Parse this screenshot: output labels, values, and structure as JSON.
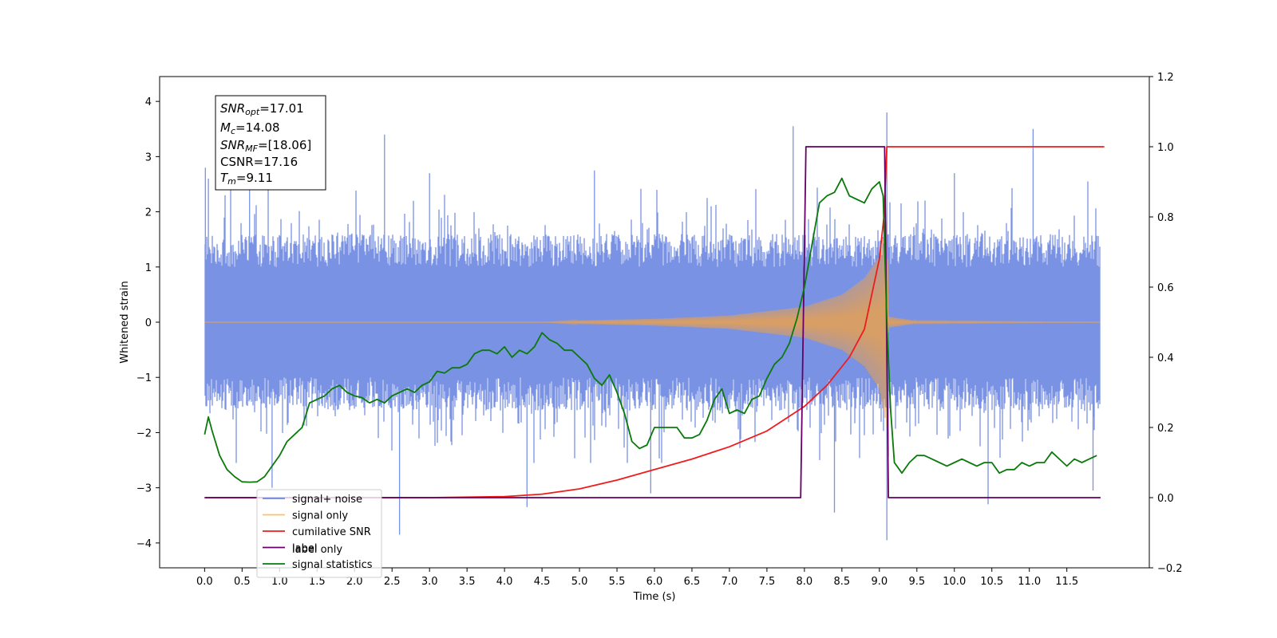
{
  "chart_data": {
    "type": "line",
    "xlabel": "Time (s)",
    "ylabel": "Whitened strain",
    "xlim": [
      -0.6,
      12.6
    ],
    "ylim": [
      -4.45,
      4.45
    ],
    "y2lim": [
      -0.2,
      1.2
    ],
    "x_ticks": [
      "0.0",
      "0.5",
      "1.0",
      "1.5",
      "2.0",
      "2.5",
      "3.0",
      "3.5",
      "4.0",
      "4.5",
      "5.0",
      "5.5",
      "6.0",
      "6.5",
      "7.0",
      "7.5",
      "8.0",
      "8.5",
      "9.0",
      "9.5",
      "10.0",
      "10.5",
      "11.0",
      "11.5"
    ],
    "y_ticks": [
      "4",
      "3",
      "2",
      "1",
      "0",
      "−1",
      "−2",
      "−3",
      "−4"
    ],
    "y2_ticks": [
      "1.2",
      "1.0",
      "0.8",
      "0.6",
      "0.4",
      "0.2",
      "0.0",
      "−0.2"
    ],
    "grid": false,
    "legend_position": "lower-left",
    "textbox": {
      "snr_opt_value": "=17.01",
      "mc_value": "=14.08",
      "snr_mf_value": "=[18.06]",
      "csnr": "CSNR=17.16",
      "tm_value": "=9.11",
      "snr_label": "SNR",
      "opt_sub": "opt",
      "mc_label": "M",
      "mc_sub": "c",
      "mf_sub": "MF",
      "tm_label": "T",
      "tm_sub": "m"
    },
    "legend": [
      {
        "label": "signal+ noise",
        "color": "#6b86e0"
      },
      {
        "label": "signal only",
        "color": "#ffc060"
      },
      {
        "label": "cumilative SNR",
        "color": "#ee1c1c"
      },
      {
        "label": "label",
        "color": "#660066"
      },
      {
        "label": "signal statistics",
        "color": "#0a7a0a"
      }
    ],
    "hidden_legend_text": "label only",
    "series": [
      {
        "name": "signal+ noise",
        "axis": "left",
        "color": "#6b86e0",
        "spikes": [
          [
            0.01,
            2.8
          ],
          [
            0.6,
            3.05
          ],
          [
            2.4,
            3.4
          ],
          [
            7.85,
            3.55
          ],
          [
            9.1,
            3.8
          ],
          [
            11.05,
            3.5
          ],
          [
            2.6,
            -3.85
          ],
          [
            4.3,
            -3.35
          ],
          [
            8.4,
            -3.45
          ],
          [
            9.1,
            -3.95
          ],
          [
            10.45,
            -3.3
          ],
          [
            11.85,
            -3.05
          ],
          [
            0.9,
            -3.0
          ],
          [
            5.95,
            -3.1
          ],
          [
            0.05,
            2.6
          ],
          [
            3.0,
            2.7
          ],
          [
            5.2,
            2.75
          ],
          [
            10.0,
            2.7
          ]
        ]
      },
      {
        "name": "signal only",
        "axis": "left",
        "color": "#e8a050",
        "points": [
          [
            4.5,
            0.0
          ],
          [
            5.0,
            0.03
          ],
          [
            6.0,
            0.06
          ],
          [
            7.0,
            0.12
          ],
          [
            7.5,
            0.2
          ],
          [
            8.0,
            0.28
          ],
          [
            8.5,
            0.5
          ],
          [
            8.8,
            0.8
          ],
          [
            9.0,
            1.2
          ],
          [
            9.1,
            1.9
          ],
          [
            9.12,
            0.1
          ],
          [
            9.5,
            0.02
          ],
          [
            12.0,
            0.0
          ]
        ]
      },
      {
        "name": "cumilative SNR",
        "axis": "right",
        "color": "#ee1c1c",
        "x": [
          0,
          1,
          2,
          3,
          4,
          4.5,
          5,
          5.5,
          6,
          6.5,
          7,
          7.5,
          8,
          8.3,
          8.6,
          8.8,
          9.0,
          9.06,
          9.1,
          12.0
        ],
        "y": [
          0,
          0,
          0,
          0,
          0.003,
          0.01,
          0.025,
          0.05,
          0.08,
          0.11,
          0.145,
          0.19,
          0.26,
          0.32,
          0.4,
          0.48,
          0.68,
          0.8,
          1.0,
          1.0
        ]
      },
      {
        "name": "label",
        "axis": "right",
        "color": "#660066",
        "x": [
          0,
          7.95,
          8.02,
          9.07,
          9.12,
          11.95
        ],
        "y": [
          0,
          0,
          1,
          1,
          0,
          0
        ]
      },
      {
        "name": "signal statistics",
        "axis": "right",
        "color": "#0a7a0a",
        "x": [
          0,
          0.05,
          0.1,
          0.2,
          0.3,
          0.4,
          0.5,
          0.6,
          0.7,
          0.8,
          0.9,
          1.0,
          1.1,
          1.2,
          1.3,
          1.4,
          1.5,
          1.6,
          1.7,
          1.8,
          1.9,
          2.0,
          2.1,
          2.2,
          2.3,
          2.4,
          2.5,
          2.6,
          2.7,
          2.8,
          2.9,
          3.0,
          3.1,
          3.2,
          3.3,
          3.4,
          3.5,
          3.6,
          3.7,
          3.8,
          3.9,
          4.0,
          4.1,
          4.2,
          4.3,
          4.4,
          4.5,
          4.6,
          4.7,
          4.8,
          4.9,
          5.0,
          5.1,
          5.2,
          5.3,
          5.4,
          5.5,
          5.6,
          5.7,
          5.8,
          5.9,
          6.0,
          6.1,
          6.2,
          6.3,
          6.4,
          6.5,
          6.6,
          6.7,
          6.8,
          6.9,
          7.0,
          7.1,
          7.2,
          7.3,
          7.4,
          7.5,
          7.6,
          7.7,
          7.8,
          7.9,
          8.0,
          8.1,
          8.2,
          8.3,
          8.4,
          8.5,
          8.6,
          8.7,
          8.8,
          8.9,
          9.0,
          9.05,
          9.1,
          9.15,
          9.2,
          9.3,
          9.4,
          9.5,
          9.6,
          9.7,
          9.8,
          9.9,
          10.0,
          10.1,
          10.2,
          10.3,
          10.4,
          10.5,
          10.6,
          10.7,
          10.8,
          10.9,
          11.0,
          11.1,
          11.2,
          11.3,
          11.4,
          11.5,
          11.6,
          11.7,
          11.8,
          11.9
        ],
        "y": [
          0.18,
          0.23,
          0.19,
          0.12,
          0.08,
          0.06,
          0.045,
          0.044,
          0.045,
          0.06,
          0.09,
          0.12,
          0.16,
          0.18,
          0.2,
          0.27,
          0.28,
          0.29,
          0.31,
          0.32,
          0.3,
          0.29,
          0.285,
          0.27,
          0.28,
          0.27,
          0.29,
          0.3,
          0.31,
          0.3,
          0.32,
          0.33,
          0.36,
          0.355,
          0.37,
          0.37,
          0.38,
          0.41,
          0.42,
          0.42,
          0.41,
          0.43,
          0.4,
          0.42,
          0.41,
          0.43,
          0.47,
          0.45,
          0.44,
          0.42,
          0.42,
          0.4,
          0.38,
          0.34,
          0.32,
          0.35,
          0.3,
          0.24,
          0.16,
          0.14,
          0.15,
          0.2,
          0.2,
          0.2,
          0.2,
          0.17,
          0.17,
          0.18,
          0.22,
          0.28,
          0.31,
          0.24,
          0.25,
          0.24,
          0.28,
          0.29,
          0.34,
          0.38,
          0.4,
          0.44,
          0.51,
          0.6,
          0.72,
          0.84,
          0.86,
          0.87,
          0.91,
          0.86,
          0.85,
          0.84,
          0.88,
          0.9,
          0.86,
          0.5,
          0.25,
          0.1,
          0.07,
          0.1,
          0.12,
          0.12,
          0.11,
          0.1,
          0.09,
          0.1,
          0.11,
          0.1,
          0.09,
          0.1,
          0.1,
          0.07,
          0.08,
          0.08,
          0.1,
          0.09,
          0.1,
          0.1,
          0.13,
          0.11,
          0.09,
          0.11,
          0.1,
          0.11,
          0.12
        ]
      }
    ]
  }
}
